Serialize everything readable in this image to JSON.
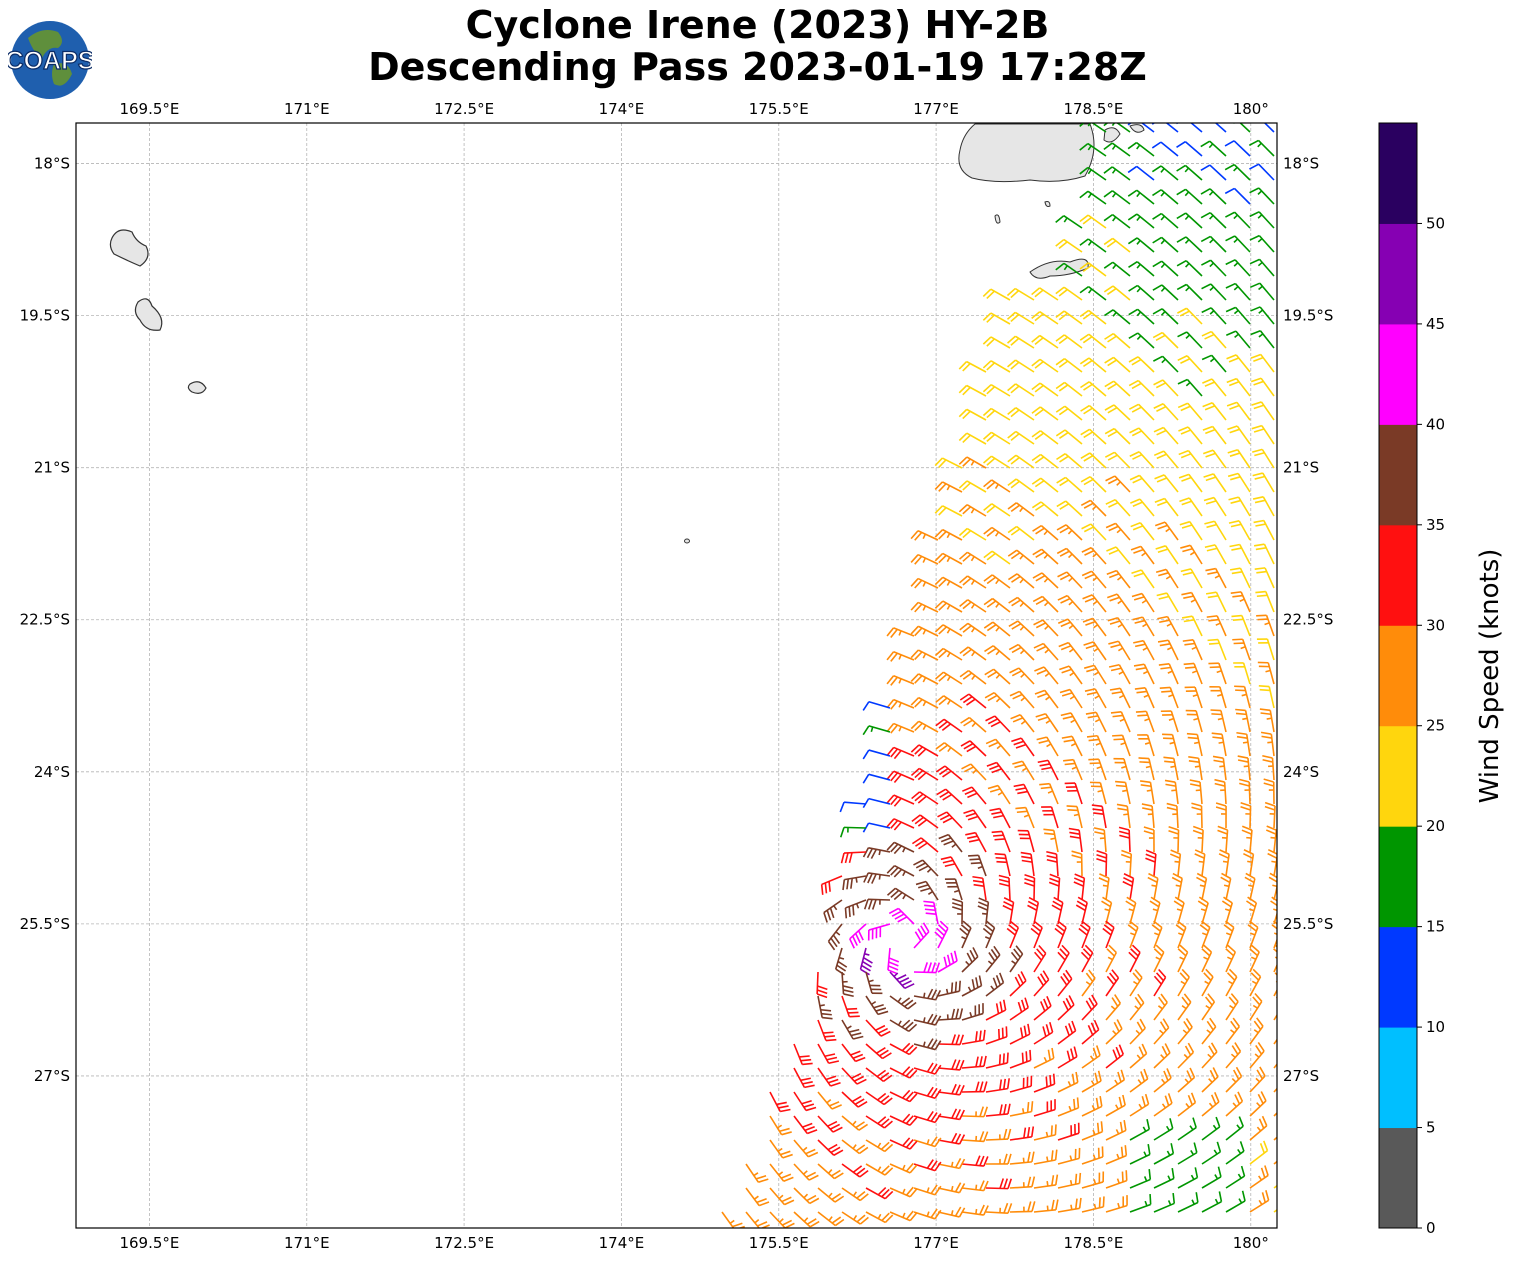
{
  "title": {
    "line1": "Cyclone Irene (2023) HY-2B",
    "line2": "Descending Pass 2023-01-19 17:28Z"
  },
  "logo": {
    "text": "COAPS",
    "icon": "globe-icon"
  },
  "map": {
    "lon_range": [
      168.8,
      180.25
    ],
    "lat_range": [
      -28.5,
      -17.6
    ],
    "lon_ticks": [
      {
        "value": 169.5,
        "label": "169.5°E"
      },
      {
        "value": 171.0,
        "label": "171°E"
      },
      {
        "value": 172.5,
        "label": "172.5°E"
      },
      {
        "value": 174.0,
        "label": "174°E"
      },
      {
        "value": 175.5,
        "label": "175.5°E"
      },
      {
        "value": 177.0,
        "label": "177°E"
      },
      {
        "value": 178.5,
        "label": "178.5°E"
      },
      {
        "value": 180.0,
        "label": "180°"
      }
    ],
    "lat_ticks": [
      {
        "value": -18.0,
        "label": "18°S"
      },
      {
        "value": -19.5,
        "label": "19.5°S"
      },
      {
        "value": -21.0,
        "label": "21°S"
      },
      {
        "value": -22.5,
        "label": "22.5°S"
      },
      {
        "value": -24.0,
        "label": "24°S"
      },
      {
        "value": -25.5,
        "label": "25.5°S"
      },
      {
        "value": -27.0,
        "label": "27°S"
      }
    ],
    "grid": true,
    "storm_center": {
      "lon": 176.7,
      "lat": -25.7
    },
    "land_color": "#e6e6e6",
    "coast_color": "#333333"
  },
  "colorbar": {
    "label": "Wind Speed (knots)",
    "range": [
      0,
      55
    ],
    "ticks": [
      0,
      5,
      10,
      15,
      20,
      25,
      30,
      35,
      40,
      45,
      50
    ],
    "bins": [
      {
        "min": 0,
        "max": 5,
        "color": "#595959"
      },
      {
        "min": 5,
        "max": 10,
        "color": "#00bfff"
      },
      {
        "min": 10,
        "max": 15,
        "color": "#0039ff"
      },
      {
        "min": 15,
        "max": 20,
        "color": "#009600"
      },
      {
        "min": 20,
        "max": 25,
        "color": "#ffd60d"
      },
      {
        "min": 25,
        "max": 30,
        "color": "#ff8c0a"
      },
      {
        "min": 30,
        "max": 35,
        "color": "#ff1010"
      },
      {
        "min": 35,
        "max": 40,
        "color": "#7a3a26"
      },
      {
        "min": 40,
        "max": 45,
        "color": "#ff00ff"
      },
      {
        "min": 45,
        "max": 50,
        "color": "#8600b3"
      },
      {
        "min": 50,
        "max": 55,
        "color": "#2a0060"
      }
    ]
  }
}
